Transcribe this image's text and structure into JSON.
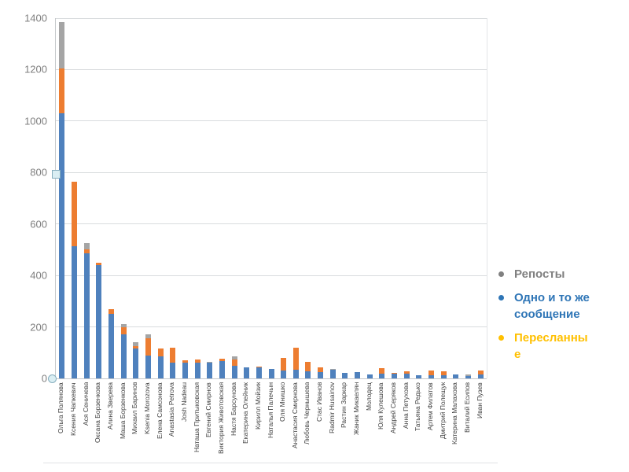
{
  "chart_data": {
    "type": "bar",
    "stacked": true,
    "orientation": "vertical",
    "title": "",
    "xlabel": "",
    "ylabel": "",
    "ylim": [
      0,
      1400
    ],
    "yticks": [
      0,
      200,
      400,
      600,
      800,
      1000,
      1200,
      1400
    ],
    "grid": true,
    "legend_position": "right",
    "categories": [
      "Ольга Полянова",
      "Ксения Чапкевич",
      "Ася Сеничева",
      "Оксана Борзенкова",
      "Алина Зверева",
      "Маша Борзенкова",
      "Михаил Баринов",
      "Ksenia Morozova",
      "Елена Самсонова",
      "Anastasia Petrova",
      "Josh Nadeau",
      "Наташа Притыковская",
      "Евгений Смирнов",
      "Виктория Животовская",
      "Настя Барсунова",
      "Екатерина Олейник",
      "Кирилл Мойзик",
      "Наталья Палечын",
      "Оля Мнишко",
      "Анастасия Смирнова",
      "Любовь Чернышева",
      "Стас Иванов",
      "Radmir Husainov",
      "Растин Заркар",
      "Жаник Микаелян",
      "Молодец",
      "Юля Кулешова",
      "Андрей Серяков",
      "Анна Петухова",
      "Татьяна Редько",
      "Артем Филатов",
      "Дмитрий Полещук",
      "Катерина Малахова",
      "Виталий Есипов",
      "Иван Пузев"
    ],
    "series": [
      {
        "name": "Одно и то же сообщение",
        "color": "#4f81bd",
        "values": [
          1030,
          515,
          485,
          440,
          250,
          170,
          115,
          90,
          85,
          60,
          60,
          62,
          60,
          66,
          50,
          42,
          42,
          38,
          32,
          35,
          28,
          26,
          33,
          22,
          23,
          16,
          18,
          18,
          17,
          13,
          12,
          12,
          14,
          10,
          14
        ]
      },
      {
        "name": "Пересланные",
        "color": "#ed7d31",
        "values": [
          175,
          250,
          15,
          10,
          20,
          30,
          10,
          65,
          30,
          60,
          10,
          12,
          0,
          10,
          22,
          0,
          5,
          0,
          48,
          85,
          35,
          18,
          0,
          0,
          0,
          0,
          22,
          5,
          10,
          0,
          18,
          17,
          0,
          0,
          18
        ]
      },
      {
        "name": "Репосты",
        "color": "#a5a5a5",
        "values": [
          180,
          0,
          25,
          0,
          0,
          10,
          15,
          15,
          0,
          0,
          0,
          0,
          5,
          0,
          15,
          0,
          0,
          0,
          0,
          0,
          0,
          0,
          5,
          0,
          0,
          0,
          0,
          0,
          0,
          0,
          0,
          0,
          0,
          4,
          0
        ]
      }
    ]
  },
  "legend": {
    "items": [
      {
        "label": "Репосты",
        "color": "#808080",
        "icon": "bullet-dot"
      },
      {
        "label": "Одно и то же сообщение",
        "color": "#2e75b6",
        "icon": "bullet-dot"
      },
      {
        "label": "Пересланные",
        "color": "#ffc000",
        "icon": "bullet-dot"
      }
    ]
  }
}
